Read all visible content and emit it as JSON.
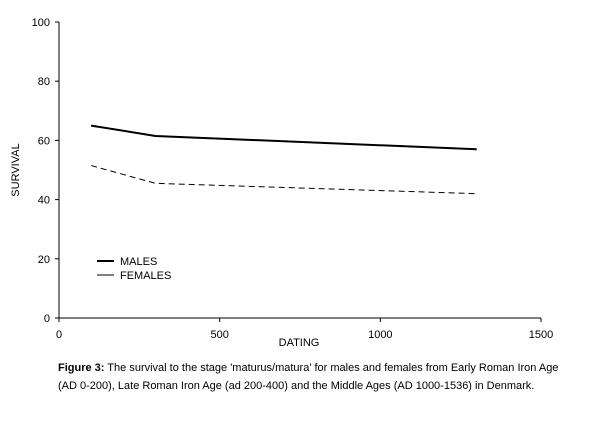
{
  "chart_data": {
    "type": "line",
    "title": "",
    "xlabel": "DATING",
    "ylabel": "SURVIVAL",
    "xlim": [
      0,
      1500
    ],
    "ylim": [
      0,
      100
    ],
    "xticks": [
      0,
      500,
      1000,
      1500
    ],
    "yticks": [
      0,
      20,
      40,
      60,
      80,
      100
    ],
    "grid": false,
    "legend_position": "lower-left",
    "series": [
      {
        "name": "MALES",
        "style": "solid",
        "color": "#000000",
        "x": [
          100,
          300,
          1300
        ],
        "y": [
          65,
          61.5,
          57
        ]
      },
      {
        "name": "FEMALES",
        "style": "dashed",
        "color": "#000000",
        "x": [
          100,
          300,
          1300
        ],
        "y": [
          51.5,
          45.5,
          42
        ]
      }
    ]
  },
  "caption": {
    "label": "Figure 3:",
    "text": " The survival to the stage 'maturus/matura' for males and females from Early Roman Iron Age (AD 0-200), Late Roman Iron Age (ad 200-400) and the Middle Ages (AD 1000-1536) in Denmark."
  }
}
